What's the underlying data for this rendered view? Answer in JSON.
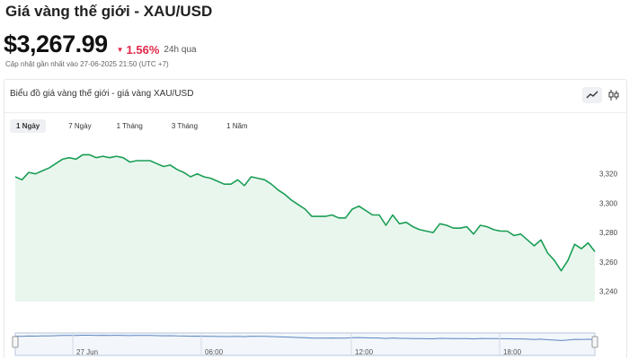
{
  "header": {
    "title": "Giá vàng thế giới - XAU/USD",
    "price": "$3,267.99",
    "change": "1.56%",
    "period": "24h qua",
    "updated": "Cập nhật gần nhất vào 27-06-2025 21:50 (UTC +7)"
  },
  "card": {
    "title": "Biểu đồ giá vàng thế giới - giá vàng XAU/USD",
    "tools": [
      {
        "name": "line-chart-icon",
        "active": true
      },
      {
        "name": "candlestick-icon",
        "active": false
      }
    ]
  },
  "tabs": [
    {
      "label": "1 Ngày",
      "active": true
    },
    {
      "label": "7 Ngày",
      "active": false
    },
    {
      "label": "1 Tháng",
      "active": false
    },
    {
      "label": "3 Tháng",
      "active": false
    },
    {
      "label": "1 Năm",
      "active": false
    }
  ],
  "colors": {
    "line": "#1a9e55",
    "area": "#e9f6ee",
    "down": "#e0284a"
  },
  "chart_data": {
    "type": "area",
    "ylim": [
      3233,
      3340
    ],
    "yticks": [
      "3,320",
      "3,300",
      "3,280",
      "3,260",
      "3,240"
    ],
    "ytick_values": [
      3320,
      3300,
      3280,
      3260,
      3240
    ],
    "navigator_labels": [
      "27 Jun",
      "06:00",
      "12:00",
      "18:00"
    ],
    "values": [
      3318,
      3316,
      3321,
      3320,
      3322,
      3324,
      3327,
      3330,
      3331,
      3330,
      3333,
      3333,
      3331,
      3332,
      3331,
      3332,
      3331,
      3328,
      3329,
      3329,
      3329,
      3327,
      3325,
      3326,
      3323,
      3321,
      3318,
      3320,
      3318,
      3317,
      3315,
      3313,
      3313,
      3316,
      3312,
      3318,
      3317,
      3316,
      3313,
      3309,
      3306,
      3302,
      3299,
      3296,
      3291,
      3291,
      3291,
      3292,
      3290,
      3290,
      3296,
      3298,
      3295,
      3292,
      3292,
      3285,
      3292,
      3286,
      3287,
      3284,
      3282,
      3281,
      3280,
      3286,
      3285,
      3283,
      3283,
      3284,
      3279,
      3285,
      3284,
      3282,
      3281,
      3281,
      3278,
      3279,
      3275,
      3271,
      3275,
      3266,
      3261,
      3254,
      3261,
      3272,
      3269,
      3273,
      3267
    ]
  }
}
